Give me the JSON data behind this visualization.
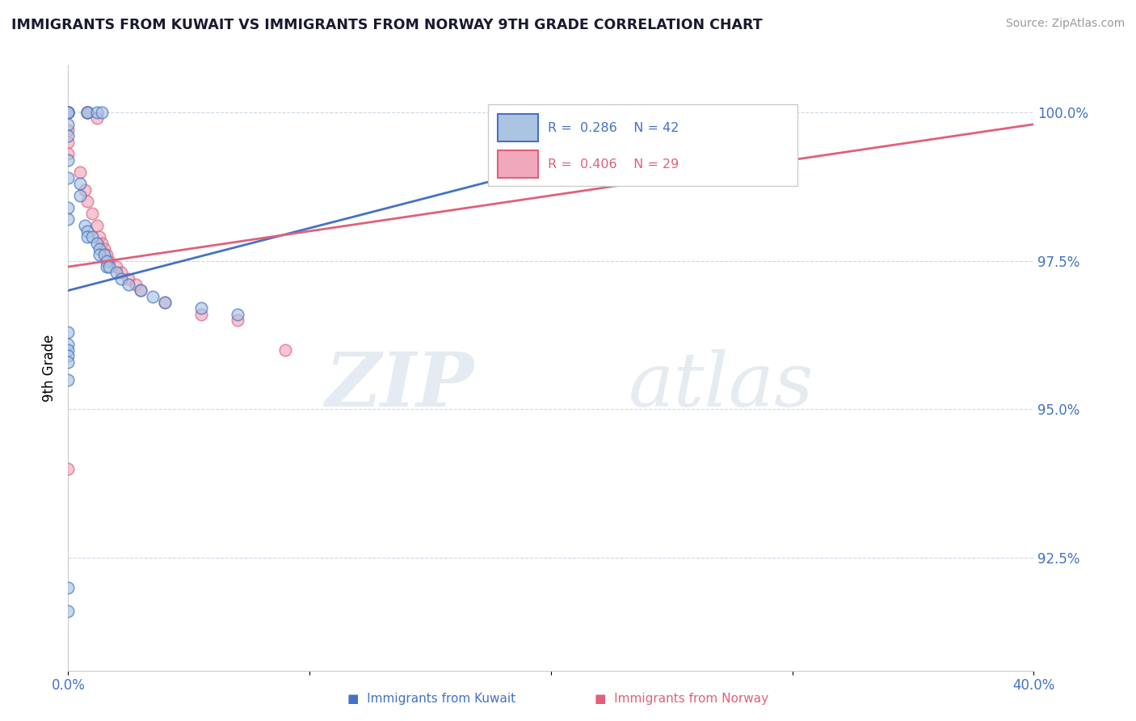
{
  "title": "IMMIGRANTS FROM KUWAIT VS IMMIGRANTS FROM NORWAY 9TH GRADE CORRELATION CHART",
  "source": "Source: ZipAtlas.com",
  "ylabel": "9th Grade",
  "yticks": [
    "92.5%",
    "95.0%",
    "97.5%",
    "100.0%"
  ],
  "ytick_vals": [
    0.925,
    0.95,
    0.975,
    1.0
  ],
  "xlim": [
    0.0,
    0.4
  ],
  "ylim": [
    0.906,
    1.008
  ],
  "watermark": "ZIPatlas",
  "kuwait_color": "#aac4e2",
  "norway_color": "#f0a8bc",
  "kuwait_line_color": "#4472c4",
  "norway_line_color": "#e0607a",
  "kuwait_R": 0.286,
  "kuwait_N": 42,
  "norway_R": 0.406,
  "norway_N": 29,
  "kuwait_scatter": [
    [
      0.0,
      1.0
    ],
    [
      0.0,
      1.0
    ],
    [
      0.0,
      1.0
    ],
    [
      0.008,
      1.0
    ],
    [
      0.008,
      1.0
    ],
    [
      0.012,
      1.0
    ],
    [
      0.014,
      1.0
    ],
    [
      0.0,
      0.998
    ],
    [
      0.0,
      0.996
    ],
    [
      0.0,
      0.992
    ],
    [
      0.0,
      0.989
    ],
    [
      0.005,
      0.988
    ],
    [
      0.005,
      0.986
    ],
    [
      0.0,
      0.984
    ],
    [
      0.0,
      0.982
    ],
    [
      0.007,
      0.981
    ],
    [
      0.008,
      0.98
    ],
    [
      0.008,
      0.979
    ],
    [
      0.01,
      0.979
    ],
    [
      0.012,
      0.978
    ],
    [
      0.013,
      0.977
    ],
    [
      0.013,
      0.976
    ],
    [
      0.015,
      0.976
    ],
    [
      0.016,
      0.975
    ],
    [
      0.016,
      0.974
    ],
    [
      0.017,
      0.974
    ],
    [
      0.02,
      0.973
    ],
    [
      0.022,
      0.972
    ],
    [
      0.025,
      0.971
    ],
    [
      0.03,
      0.97
    ],
    [
      0.035,
      0.969
    ],
    [
      0.04,
      0.968
    ],
    [
      0.055,
      0.967
    ],
    [
      0.07,
      0.966
    ],
    [
      0.0,
      0.963
    ],
    [
      0.0,
      0.961
    ],
    [
      0.0,
      0.96
    ],
    [
      0.0,
      0.959
    ],
    [
      0.0,
      0.958
    ],
    [
      0.0,
      0.955
    ],
    [
      0.0,
      0.92
    ],
    [
      0.0,
      0.916
    ]
  ],
  "norway_scatter": [
    [
      0.0,
      1.0
    ],
    [
      0.0,
      1.0
    ],
    [
      0.0,
      1.0
    ],
    [
      0.008,
      1.0
    ],
    [
      0.008,
      1.0
    ],
    [
      0.012,
      0.999
    ],
    [
      0.0,
      0.997
    ],
    [
      0.0,
      0.995
    ],
    [
      0.0,
      0.993
    ],
    [
      0.005,
      0.99
    ],
    [
      0.007,
      0.987
    ],
    [
      0.008,
      0.985
    ],
    [
      0.01,
      0.983
    ],
    [
      0.012,
      0.981
    ],
    [
      0.013,
      0.979
    ],
    [
      0.014,
      0.978
    ],
    [
      0.015,
      0.977
    ],
    [
      0.016,
      0.976
    ],
    [
      0.017,
      0.975
    ],
    [
      0.02,
      0.974
    ],
    [
      0.022,
      0.973
    ],
    [
      0.025,
      0.972
    ],
    [
      0.028,
      0.971
    ],
    [
      0.03,
      0.97
    ],
    [
      0.04,
      0.968
    ],
    [
      0.055,
      0.966
    ],
    [
      0.07,
      0.965
    ],
    [
      0.0,
      0.94
    ],
    [
      0.09,
      0.96
    ]
  ],
  "kuwait_size": 110,
  "norway_size": 110,
  "kuwait_line_x": [
    0.0,
    0.295
  ],
  "kuwait_line_y": [
    0.97,
    1.001
  ],
  "norway_line_x": [
    0.0,
    0.4
  ],
  "norway_line_y": [
    0.974,
    0.998
  ]
}
